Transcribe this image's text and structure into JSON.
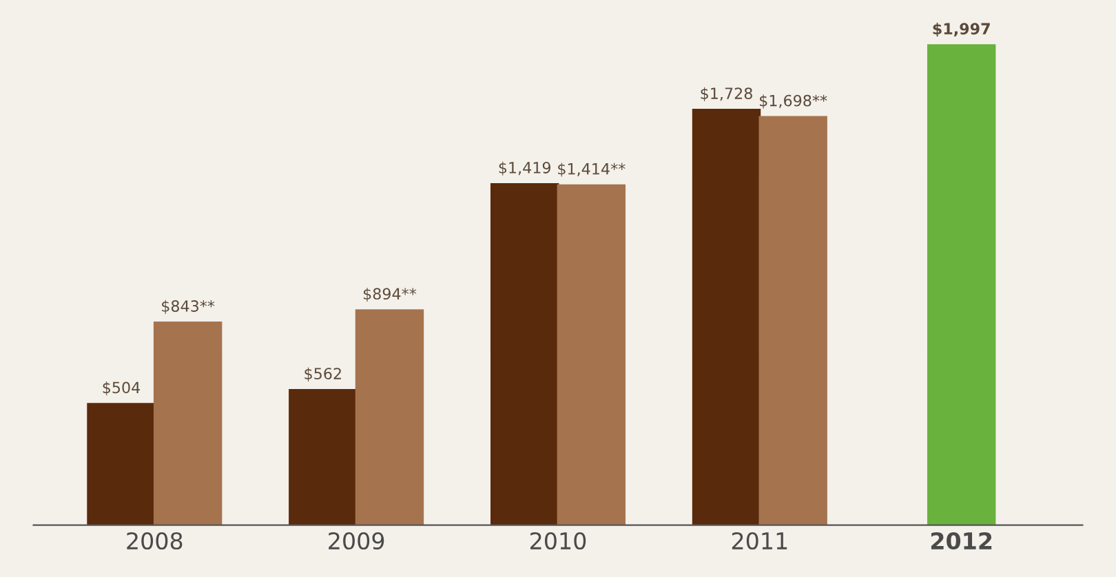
{
  "chart_data": {
    "type": "bar",
    "categories": [
      "2008",
      "2009",
      "2010",
      "2011",
      "2012"
    ],
    "series": [
      {
        "color": "#5a2a0c",
        "values": [
          504,
          562,
          1419,
          1728,
          null
        ],
        "value_labels": [
          "$504",
          "$562",
          "$1,419",
          "$1,728",
          null
        ]
      },
      {
        "color": "#a5744f",
        "values": [
          843,
          894,
          1414,
          1698,
          null
        ],
        "value_labels": [
          "$843**",
          "$894**",
          "$1,414**",
          "$1,698**",
          null
        ]
      },
      {
        "color": "#6ab23e",
        "values": [
          null,
          null,
          null,
          null,
          1997
        ],
        "value_labels": [
          null,
          null,
          null,
          null,
          "$1,997"
        ]
      }
    ],
    "grid": false,
    "legend": false
  }
}
